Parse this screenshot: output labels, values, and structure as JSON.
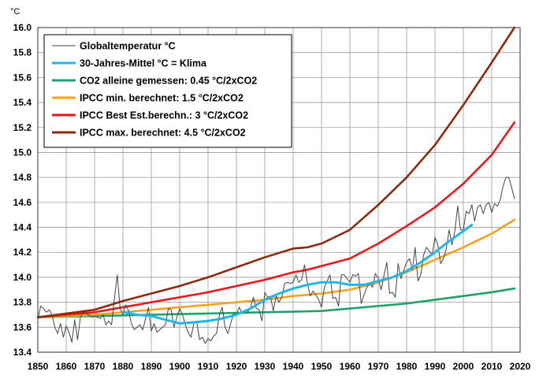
{
  "chart_data": {
    "type": "line",
    "unit_label": "°C",
    "xlim": [
      1850,
      2020
    ],
    "ylim": [
      13.4,
      16.0
    ],
    "x_ticks": [
      1850,
      1860,
      1870,
      1880,
      1890,
      1900,
      1910,
      1920,
      1930,
      1940,
      1950,
      1960,
      1970,
      1980,
      1990,
      2000,
      2010,
      2020
    ],
    "y_ticks": [
      13.4,
      13.6,
      13.8,
      14.0,
      14.2,
      14.4,
      14.6,
      14.8,
      15.0,
      15.2,
      15.4,
      15.6,
      15.8,
      16.0
    ],
    "grid": true,
    "legend_position": "top-left",
    "series": [
      {
        "name": "Globaltemperatur °C",
        "color": "#444444",
        "x": [
          1850,
          1851,
          1852,
          1853,
          1854,
          1855,
          1856,
          1857,
          1858,
          1859,
          1860,
          1861,
          1862,
          1863,
          1864,
          1865,
          1866,
          1867,
          1868,
          1869,
          1870,
          1871,
          1872,
          1873,
          1874,
          1875,
          1876,
          1877,
          1878,
          1879,
          1880,
          1881,
          1882,
          1883,
          1884,
          1885,
          1886,
          1887,
          1888,
          1889,
          1890,
          1891,
          1892,
          1893,
          1894,
          1895,
          1896,
          1897,
          1898,
          1899,
          1900,
          1901,
          1902,
          1903,
          1904,
          1905,
          1906,
          1907,
          1908,
          1909,
          1910,
          1911,
          1912,
          1913,
          1914,
          1915,
          1916,
          1917,
          1918,
          1919,
          1920,
          1921,
          1922,
          1923,
          1924,
          1925,
          1926,
          1927,
          1928,
          1929,
          1930,
          1931,
          1932,
          1933,
          1934,
          1935,
          1936,
          1937,
          1938,
          1939,
          1940,
          1941,
          1942,
          1943,
          1944,
          1945,
          1946,
          1947,
          1948,
          1949,
          1950,
          1951,
          1952,
          1953,
          1954,
          1955,
          1956,
          1957,
          1958,
          1959,
          1960,
          1961,
          1962,
          1963,
          1964,
          1965,
          1966,
          1967,
          1968,
          1969,
          1970,
          1971,
          1972,
          1973,
          1974,
          1975,
          1976,
          1977,
          1978,
          1979,
          1980,
          1981,
          1982,
          1983,
          1984,
          1985,
          1986,
          1987,
          1988,
          1989,
          1990,
          1991,
          1992,
          1993,
          1994,
          1995,
          1996,
          1997,
          1998,
          1999,
          2000,
          2001,
          2002,
          2003,
          2004,
          2005,
          2006,
          2007,
          2008,
          2009,
          2010,
          2011,
          2012,
          2013,
          2014,
          2015,
          2016,
          2017,
          2018
        ],
        "values": [
          13.66,
          13.77,
          13.75,
          13.72,
          13.74,
          13.7,
          13.6,
          13.55,
          13.63,
          13.52,
          13.61,
          13.56,
          13.48,
          13.66,
          13.5,
          13.68,
          13.72,
          13.71,
          13.7,
          13.68,
          13.69,
          13.68,
          13.67,
          13.7,
          13.62,
          13.65,
          13.62,
          13.83,
          14.02,
          13.75,
          13.7,
          13.78,
          13.73,
          13.63,
          13.58,
          13.6,
          13.62,
          13.58,
          13.67,
          13.76,
          13.57,
          13.63,
          13.56,
          13.58,
          13.6,
          13.62,
          13.75,
          13.74,
          13.6,
          13.68,
          13.75,
          13.7,
          13.62,
          13.56,
          13.52,
          13.63,
          13.65,
          13.5,
          13.52,
          13.47,
          13.51,
          13.49,
          13.53,
          13.55,
          13.7,
          13.76,
          13.6,
          13.55,
          13.63,
          13.71,
          13.7,
          13.76,
          13.71,
          13.73,
          13.72,
          13.76,
          13.84,
          13.75,
          13.74,
          13.65,
          13.88,
          13.84,
          13.85,
          13.73,
          13.85,
          13.8,
          13.84,
          13.95,
          13.96,
          13.95,
          13.96,
          14.02,
          13.96,
          13.98,
          14.1,
          13.96,
          13.85,
          13.89,
          13.86,
          13.82,
          13.76,
          13.92,
          13.97,
          14.02,
          13.83,
          13.84,
          13.77,
          14.02,
          14.02,
          13.99,
          13.96,
          14.02,
          14.01,
          14.03,
          13.79,
          13.86,
          13.92,
          13.95,
          13.92,
          14.03,
          13.99,
          13.9,
          14.01,
          14.12,
          13.87,
          13.88,
          13.84,
          14.11,
          13.99,
          14.06,
          14.12,
          14.15,
          14.06,
          14.24,
          13.97,
          14.02,
          14.18,
          14.24,
          14.21,
          14.18,
          14.32,
          14.26,
          14.11,
          14.15,
          14.23,
          14.38,
          14.26,
          14.37,
          14.57,
          14.38,
          14.38,
          14.53,
          14.51,
          14.58,
          14.45,
          14.56,
          14.58,
          14.51,
          14.58,
          14.6,
          14.52,
          14.59,
          14.57,
          14.62,
          14.73,
          14.8,
          14.8,
          14.72,
          14.63
        ]
      },
      {
        "name": "30-Jahres-Mittel °C = Klima",
        "color": "#22b6e6",
        "x": [
          1880,
          1885,
          1890,
          1895,
          1900,
          1905,
          1910,
          1915,
          1920,
          1925,
          1930,
          1935,
          1940,
          1945,
          1950,
          1955,
          1960,
          1965,
          1970,
          1975,
          1980,
          1985,
          1990,
          1995,
          2000,
          2003
        ],
        "values": [
          13.72,
          13.7,
          13.69,
          13.66,
          13.63,
          13.64,
          13.65,
          13.67,
          13.7,
          13.75,
          13.82,
          13.87,
          13.91,
          13.94,
          13.96,
          13.96,
          13.94,
          13.94,
          13.97,
          14.0,
          14.05,
          14.12,
          14.2,
          14.29,
          14.37,
          14.42
        ]
      },
      {
        "name": "CO2 alleine gemessen: 0.45 °C/2xCO2",
        "color": "#22a06a",
        "x": [
          1850,
          1870,
          1890,
          1910,
          1930,
          1950,
          1960,
          1970,
          1980,
          1990,
          2000,
          2010,
          2018
        ],
        "values": [
          13.68,
          13.69,
          13.7,
          13.71,
          13.72,
          13.73,
          13.75,
          13.77,
          13.79,
          13.82,
          13.85,
          13.88,
          13.91
        ]
      },
      {
        "name": "IPCC min. berechnet: 1.5 °C/2xCO2",
        "color": "#f5a21c",
        "x": [
          1850,
          1870,
          1890,
          1910,
          1930,
          1940,
          1950,
          1960,
          1970,
          1980,
          1990,
          2000,
          2010,
          2018
        ],
        "values": [
          13.68,
          13.7,
          13.74,
          13.78,
          13.82,
          13.85,
          13.87,
          13.9,
          13.96,
          14.04,
          14.14,
          14.24,
          14.35,
          14.46
        ]
      },
      {
        "name": "IPCC Best Est.berechn.: 3 °C/2xCO2",
        "color": "#e8191b",
        "x": [
          1850,
          1860,
          1870,
          1880,
          1890,
          1900,
          1910,
          1920,
          1930,
          1940,
          1945,
          1950,
          1960,
          1970,
          1980,
          1990,
          2000,
          2010,
          2018
        ],
        "values": [
          13.68,
          13.7,
          13.72,
          13.76,
          13.8,
          13.84,
          13.88,
          13.93,
          13.98,
          14.04,
          14.06,
          14.09,
          14.15,
          14.27,
          14.41,
          14.56,
          14.75,
          14.98,
          15.24
        ]
      },
      {
        "name": "IPCC max. berechnet: 4.5 °C/2xCO2",
        "color": "#8c2a0f",
        "x": [
          1850,
          1860,
          1870,
          1880,
          1890,
          1900,
          1910,
          1920,
          1930,
          1940,
          1945,
          1950,
          1960,
          1970,
          1980,
          1990,
          2000,
          2010,
          2018
        ],
        "values": [
          13.68,
          13.71,
          13.74,
          13.81,
          13.87,
          13.93,
          14.0,
          14.08,
          14.16,
          14.23,
          14.24,
          14.27,
          14.38,
          14.58,
          14.8,
          15.06,
          15.38,
          15.72,
          16.0
        ]
      }
    ]
  }
}
